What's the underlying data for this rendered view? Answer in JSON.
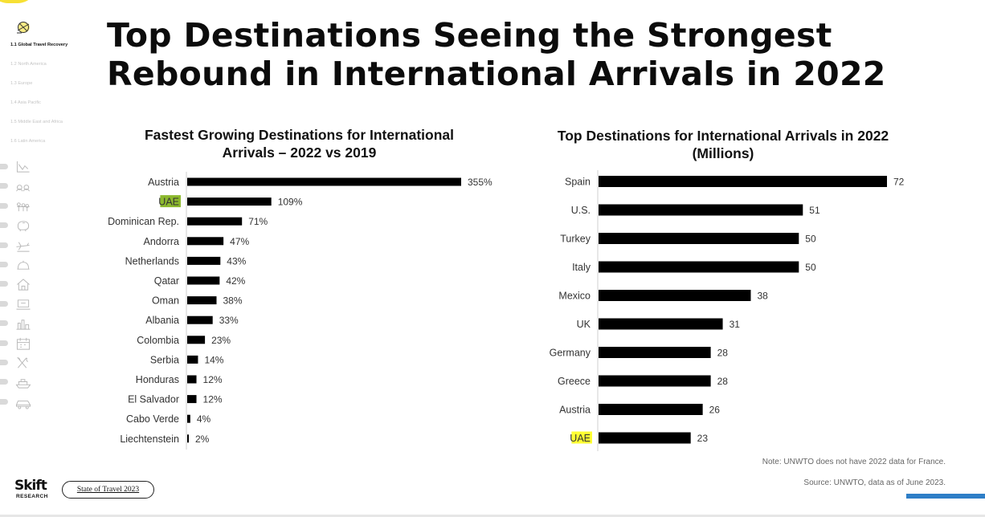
{
  "title": "Top Destinations Seeing the Strongest Rebound in International Arrivals in 2022",
  "sidebar": {
    "sections": [
      {
        "label": "1.1 Global Travel Recovery",
        "active": true
      },
      {
        "label": "1.2 North America",
        "active": false
      },
      {
        "label": "1.3 Europe",
        "active": false
      },
      {
        "label": "1.4 Asia Pacific",
        "active": false
      },
      {
        "label": "1.5 Middle East and Africa",
        "active": false
      },
      {
        "label": "1.6 Latin America",
        "active": false
      }
    ],
    "top_icon": "globe-sketch-icon",
    "icons": [
      "line-chart-icon",
      "people-group-icon",
      "family-icon",
      "piggy-bank-icon",
      "airplane-icon",
      "cloche-icon",
      "house-icon",
      "laptop-icon",
      "city-skyline-icon",
      "calendar-icon",
      "fork-knife-icon",
      "cruise-ship-icon",
      "car-icon"
    ]
  },
  "chart_data": [
    {
      "type": "bar",
      "orientation": "horizontal",
      "title": "Fastest Growing Destinations for International Arrivals – 2022 vs 2019",
      "categories": [
        "Austria",
        "UAE",
        "Dominican Rep.",
        "Andorra",
        "Netherlands",
        "Qatar",
        "Oman",
        "Albania",
        "Colombia",
        "Serbia",
        "Honduras",
        "El Salvador",
        "Cabo Verde",
        "Liechtenstein"
      ],
      "values": [
        355,
        109,
        71,
        47,
        43,
        42,
        38,
        33,
        23,
        14,
        12,
        12,
        4,
        2
      ],
      "value_suffix": "%",
      "highlight": "UAE",
      "highlight_color": "#8db92e",
      "bar_color": "#000000",
      "grid": false
    },
    {
      "type": "bar",
      "orientation": "horizontal",
      "title": "Top Destinations for International Arrivals in 2022 (Millions)",
      "categories": [
        "Spain",
        "U.S.",
        "Turkey",
        "Italy",
        "Mexico",
        "UK",
        "Germany",
        "Greece",
        "Austria",
        "UAE"
      ],
      "values": [
        72,
        51,
        50,
        50,
        38,
        31,
        28,
        28,
        26,
        23
      ],
      "value_suffix": "",
      "highlight": "UAE",
      "highlight_color": "#ffff33",
      "bar_color": "#000000",
      "grid": false
    }
  ],
  "notes": {
    "note1": "Note: UNWTO does not have 2022 data for France.",
    "note2": "Source: UNWTO, data as of June 2023."
  },
  "footer": {
    "logo_main": "Skift",
    "logo_sub": "RESEARCH",
    "button_label": "State of Travel 2023"
  },
  "colors": {
    "accent_yellow": "#f7e034",
    "accent_blue": "#2e7ec7"
  }
}
